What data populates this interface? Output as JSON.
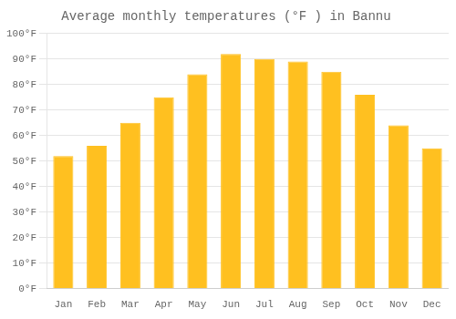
{
  "chart_data": {
    "type": "bar",
    "title": "Average monthly temperatures (°F ) in Bannu",
    "categories": [
      "Jan",
      "Feb",
      "Mar",
      "Apr",
      "May",
      "Jun",
      "Jul",
      "Aug",
      "Sep",
      "Oct",
      "Nov",
      "Dec"
    ],
    "values": [
      52,
      56,
      65,
      75,
      84,
      92,
      90,
      89,
      85,
      76,
      64,
      55
    ],
    "color": "#FFC020",
    "ylim": [
      0,
      100
    ],
    "yticks": [
      {
        "value": 0,
        "label": "0°F"
      },
      {
        "value": 10,
        "label": "10°F"
      },
      {
        "value": 20,
        "label": "20°F"
      },
      {
        "value": 30,
        "label": "30°F"
      },
      {
        "value": 40,
        "label": "40°F"
      },
      {
        "value": 50,
        "label": "50°F"
      },
      {
        "value": 60,
        "label": "60°F"
      },
      {
        "value": 70,
        "label": "70°F"
      },
      {
        "value": 80,
        "label": "80°F"
      },
      {
        "value": 90,
        "label": "90°F"
      },
      {
        "value": 100,
        "label": "100°F"
      }
    ],
    "grid": "y"
  }
}
